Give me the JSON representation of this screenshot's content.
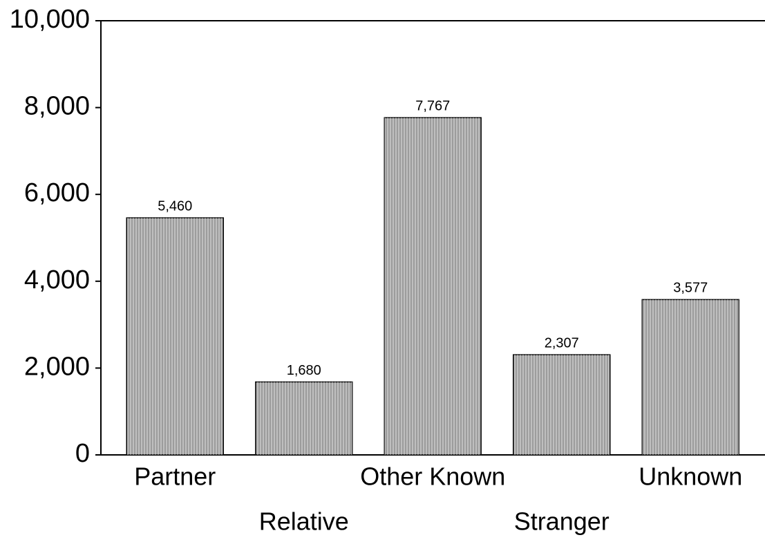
{
  "chart_data": {
    "type": "bar",
    "categories": [
      "Partner",
      "Relative",
      "Other Known",
      "Stranger",
      "Unknown"
    ],
    "values": [
      5460,
      1680,
      7767,
      2307,
      3577
    ],
    "value_labels": [
      "5,460",
      "1,680",
      "7,767",
      "2,307",
      "3,577"
    ],
    "color": "#9c9c9c",
    "ylim": [
      0,
      10000
    ],
    "yticks": [
      0,
      {
        "value": 2000,
        "label": "2,000"
      },
      {
        "value": 4000,
        "label": "4,000"
      },
      {
        "value": 6000,
        "label": "6,000"
      },
      {
        "value": 8000,
        "label": "8,000"
      },
      {
        "value": 10000,
        "label": "10,000"
      }
    ],
    "grid": false
  }
}
